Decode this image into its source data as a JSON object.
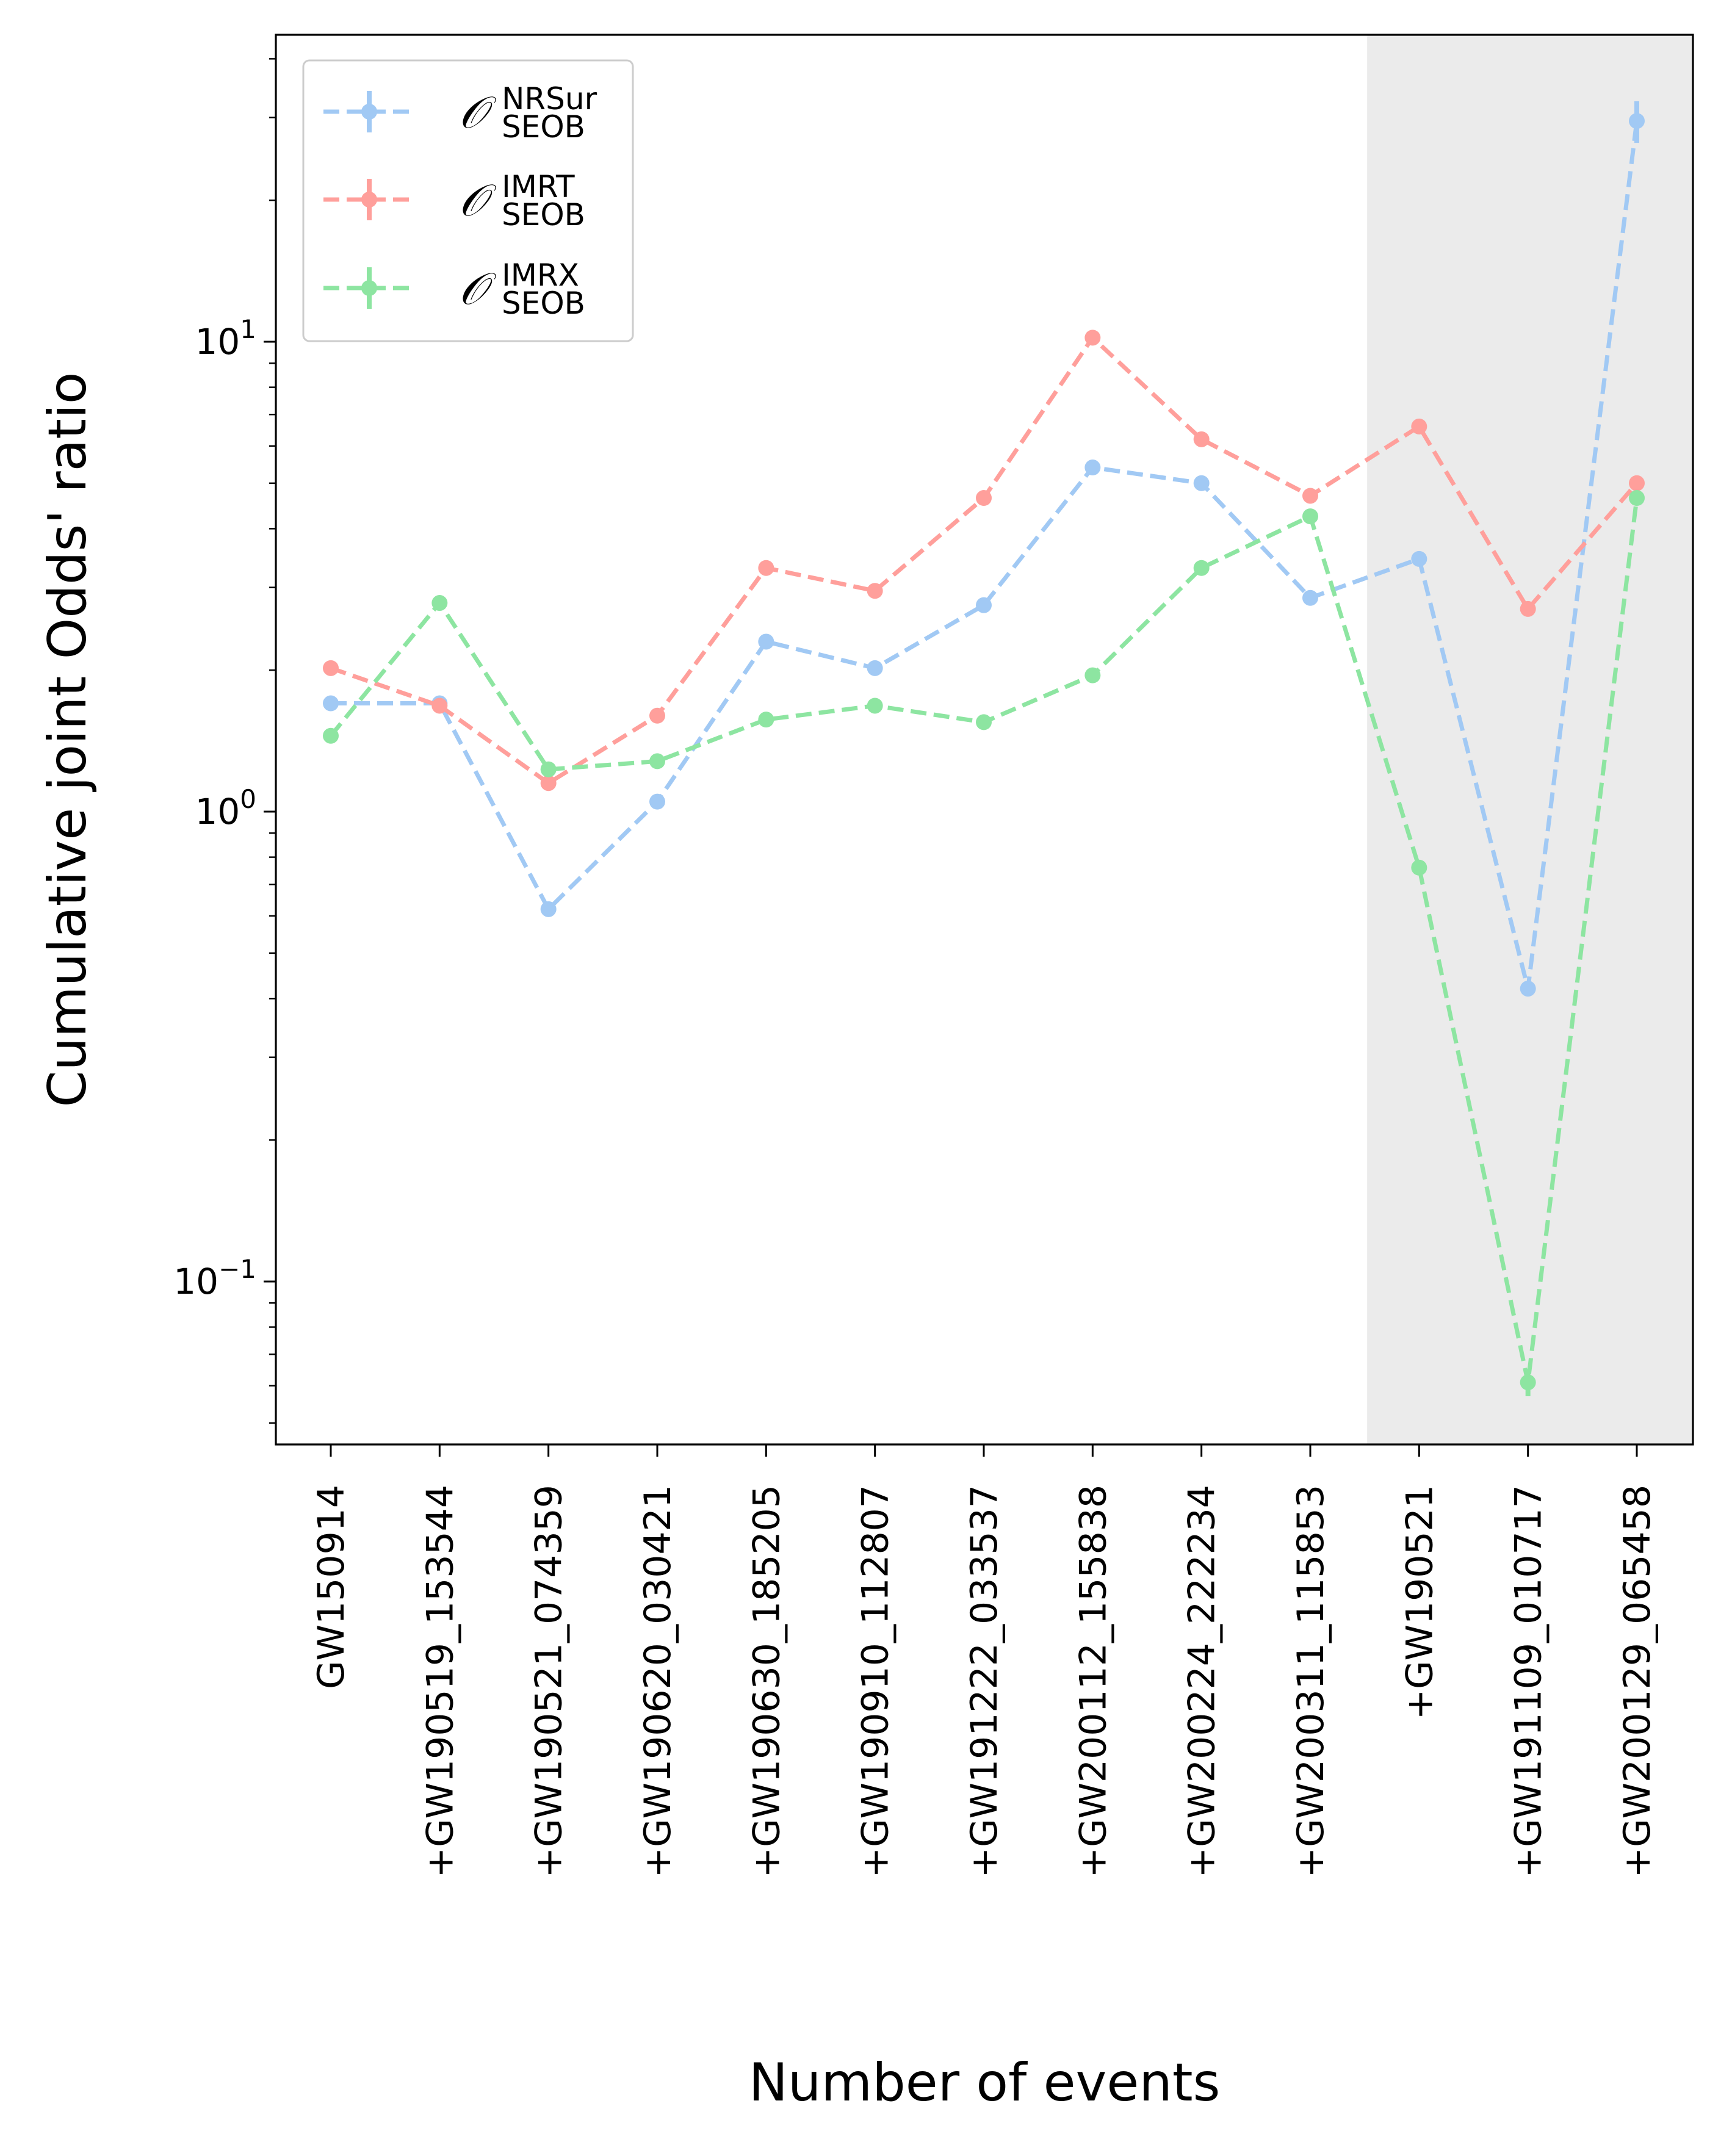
{
  "chart_data": {
    "type": "line",
    "ylabel": "Cumulative joint Odds' ratio",
    "xlabel": "Number of events",
    "yscale": "log",
    "ylim": [
      0.045,
      45
    ],
    "yticks": [
      {
        "value": 0.1,
        "base": "10",
        "exp": "−1"
      },
      {
        "value": 1,
        "base": "10",
        "exp": "0"
      },
      {
        "value": 10,
        "base": "10",
        "exp": "1"
      }
    ],
    "categories": [
      "GW150914",
      "+GW190519_153544",
      "+GW190521_074359",
      "+GW190620_030421",
      "+GW190630_185205",
      "+GW190910_112807",
      "+GW191222_033537",
      "+GW200112_155838",
      "+GW200224_222234",
      "+GW200311_115853",
      "+GW190521",
      "+GW191109_010717",
      "+GW200129_065458"
    ],
    "shaded_region_start_index": 10,
    "shaded_color": "#ebebeb",
    "series": [
      {
        "name": "NRSur",
        "legend": {
          "symbol": "𝒪",
          "sup": "NRSur",
          "sub": "SEOB"
        },
        "color": "#a1c9f4",
        "values": [
          1.7,
          1.7,
          0.62,
          1.05,
          2.3,
          2.02,
          2.75,
          5.4,
          5.0,
          2.85,
          3.45,
          0.42,
          29.5
        ],
        "error_index": 12,
        "error_range": [
          26.5,
          32.5
        ]
      },
      {
        "name": "IMRT",
        "legend": {
          "symbol": "𝒪",
          "sup": "IMRT",
          "sub": "SEOB"
        },
        "color": "#ff9f9b",
        "values": [
          2.02,
          1.68,
          1.15,
          1.6,
          3.3,
          2.95,
          4.65,
          10.2,
          6.2,
          4.7,
          6.6,
          2.7,
          5.0
        ],
        "error_index": null,
        "error_range": null
      },
      {
        "name": "IMRX",
        "legend": {
          "symbol": "𝒪",
          "sup": "IMRX",
          "sub": "SEOB"
        },
        "color": "#8de5a1",
        "values": [
          1.45,
          2.78,
          1.23,
          1.28,
          1.57,
          1.68,
          1.55,
          1.95,
          3.3,
          4.25,
          0.76,
          0.061,
          4.65
        ],
        "error_index": 11,
        "error_range": [
          0.057,
          0.065
        ]
      }
    ]
  }
}
